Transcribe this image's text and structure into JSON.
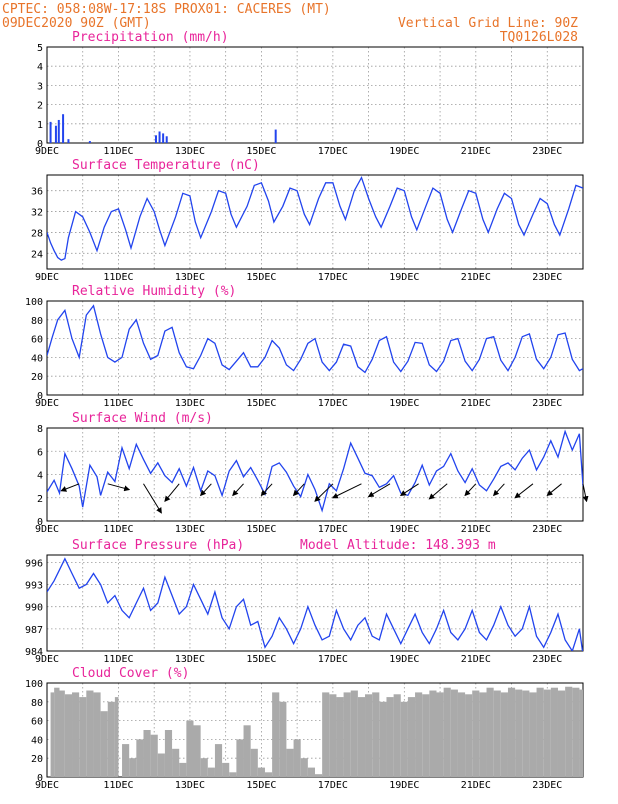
{
  "header": {
    "line1": "CPTEC:   058:08W-17:18S   PROX01: CACERES (MT)",
    "line2": "09DEC2020 90Z (GMT)",
    "grid_note": "Vertical Grid Line: 90Z",
    "code": "TQ0126L028"
  },
  "colors": {
    "header": "#e8742a",
    "title": "#e8249a",
    "line": "#2244ee",
    "cloud": "#aaaaaa",
    "arrow": "#000000",
    "grid": "#9a9a9a"
  },
  "x_tick_labels": [
    "9DEC",
    "11DEC",
    "13DEC",
    "15DEC",
    "17DEC",
    "19DEC",
    "21DEC",
    "23DEC"
  ],
  "x_range_days": [
    9,
    24
  ],
  "chart_data": [
    {
      "id": "precip",
      "type": "bar",
      "title": "Precipitation (mm/h)",
      "ylim": [
        0,
        5
      ],
      "yticks": [
        0,
        1,
        2,
        3,
        4,
        5
      ],
      "x": [
        9.1,
        9.25,
        9.33,
        9.45,
        9.6,
        10.2,
        12.05,
        12.15,
        12.25,
        12.35,
        15.4
      ],
      "values": [
        1.1,
        0.9,
        1.2,
        1.5,
        0.2,
        0.1,
        0.4,
        0.6,
        0.5,
        0.35,
        0.7
      ]
    },
    {
      "id": "temperature",
      "type": "line",
      "title": "Surface Temperature (nC)",
      "ylim": [
        21,
        39
      ],
      "yticks": [
        24,
        28,
        32,
        36
      ],
      "x": [
        9.0,
        9.1,
        9.2,
        9.3,
        9.4,
        9.5,
        9.6,
        9.8,
        10.0,
        10.2,
        10.4,
        10.6,
        10.8,
        11.0,
        11.2,
        11.35,
        11.6,
        11.8,
        12.0,
        12.15,
        12.3,
        12.6,
        12.8,
        13.0,
        13.15,
        13.3,
        13.6,
        13.8,
        14.0,
        14.15,
        14.3,
        14.6,
        14.8,
        15.0,
        15.2,
        15.35,
        15.6,
        15.8,
        16.0,
        16.2,
        16.35,
        16.6,
        16.8,
        17.0,
        17.2,
        17.35,
        17.6,
        17.8,
        18.0,
        18.2,
        18.35,
        18.6,
        18.8,
        19.0,
        19.2,
        19.35,
        19.6,
        19.8,
        20.0,
        20.2,
        20.35,
        20.6,
        20.8,
        21.0,
        21.2,
        21.35,
        21.6,
        21.8,
        22.0,
        22.2,
        22.35,
        22.6,
        22.8,
        23.0,
        23.2,
        23.35,
        23.6,
        23.8,
        24.0
      ],
      "values": [
        28,
        26,
        24.5,
        23.2,
        22.7,
        23,
        27,
        32,
        31,
        28,
        24.5,
        29,
        32,
        32.5,
        28.5,
        25,
        31,
        34.5,
        32,
        28.5,
        25.5,
        31,
        35.5,
        35,
        30,
        27,
        32,
        36,
        35.5,
        31.5,
        29,
        33,
        37,
        37.5,
        34,
        30,
        33,
        36.5,
        36,
        31.5,
        29.5,
        34.5,
        37.5,
        37.5,
        33,
        30.5,
        36,
        38.5,
        34.5,
        31,
        29,
        33,
        36.5,
        36,
        31,
        28.5,
        33,
        36.5,
        35.5,
        30.5,
        28,
        32.5,
        36,
        35.5,
        30.5,
        28,
        32.5,
        35.5,
        34.5,
        29.5,
        27.5,
        31.5,
        34.5,
        33.5,
        29.5,
        27.5,
        32.5,
        37,
        36.5
      ]
    },
    {
      "id": "humidity",
      "type": "line",
      "title": "Relative Humidity (%)",
      "ylim": [
        0,
        100
      ],
      "yticks": [
        0,
        20,
        40,
        60,
        80,
        100
      ],
      "x": [
        9.0,
        9.15,
        9.3,
        9.5,
        9.7,
        9.9,
        10.1,
        10.3,
        10.5,
        10.7,
        10.9,
        11.1,
        11.3,
        11.5,
        11.7,
        11.9,
        12.1,
        12.3,
        12.5,
        12.7,
        12.9,
        13.1,
        13.3,
        13.5,
        13.7,
        13.9,
        14.1,
        14.3,
        14.5,
        14.7,
        14.9,
        15.1,
        15.3,
        15.5,
        15.7,
        15.9,
        16.1,
        16.3,
        16.5,
        16.7,
        16.9,
        17.1,
        17.3,
        17.5,
        17.7,
        17.9,
        18.1,
        18.3,
        18.5,
        18.7,
        18.9,
        19.1,
        19.3,
        19.5,
        19.7,
        19.9,
        20.1,
        20.3,
        20.5,
        20.7,
        20.9,
        21.1,
        21.3,
        21.5,
        21.7,
        21.9,
        22.1,
        22.3,
        22.5,
        22.7,
        22.9,
        23.1,
        23.3,
        23.5,
        23.7,
        23.9,
        24.0
      ],
      "values": [
        42,
        62,
        80,
        90,
        60,
        40,
        85,
        95,
        65,
        40,
        35,
        40,
        70,
        80,
        55,
        38,
        42,
        68,
        72,
        45,
        30,
        28,
        42,
        60,
        55,
        32,
        27,
        36,
        45,
        30,
        30,
        40,
        58,
        50,
        32,
        26,
        38,
        55,
        60,
        35,
        26,
        35,
        54,
        52,
        30,
        24,
        38,
        58,
        62,
        35,
        25,
        36,
        56,
        55,
        32,
        25,
        36,
        58,
        60,
        36,
        26,
        38,
        60,
        62,
        37,
        26,
        40,
        62,
        65,
        38,
        28,
        40,
        64,
        66,
        38,
        26,
        28
      ]
    },
    {
      "id": "wind",
      "type": "line",
      "title": "Surface Wind (m/s)",
      "ylim": [
        0,
        8
      ],
      "yticks": [
        0,
        2,
        4,
        6,
        8
      ],
      "x": [
        9.0,
        9.2,
        9.35,
        9.5,
        9.7,
        9.9,
        10.0,
        10.2,
        10.4,
        10.5,
        10.7,
        10.9,
        11.1,
        11.3,
        11.5,
        11.7,
        11.9,
        12.1,
        12.3,
        12.5,
        12.7,
        12.9,
        13.1,
        13.3,
        13.5,
        13.7,
        13.9,
        14.1,
        14.3,
        14.5,
        14.7,
        14.9,
        15.1,
        15.3,
        15.5,
        15.7,
        15.9,
        16.1,
        16.3,
        16.5,
        16.7,
        16.9,
        17.1,
        17.3,
        17.5,
        17.7,
        17.9,
        18.1,
        18.3,
        18.5,
        18.7,
        18.9,
        19.1,
        19.3,
        19.5,
        19.7,
        19.9,
        20.1,
        20.3,
        20.5,
        20.7,
        20.9,
        21.1,
        21.3,
        21.5,
        21.7,
        21.9,
        22.1,
        22.3,
        22.5,
        22.7,
        22.9,
        23.1,
        23.3,
        23.5,
        23.7,
        23.9,
        24.0
      ],
      "values": [
        2.5,
        3.5,
        2.4,
        5.8,
        4.5,
        3.0,
        1.2,
        4.8,
        3.8,
        2.2,
        4.2,
        3.4,
        6.3,
        4.5,
        6.6,
        5.3,
        4.1,
        5.0,
        3.9,
        3.3,
        4.5,
        3.0,
        4.6,
        2.6,
        4.3,
        3.9,
        2.2,
        4.3,
        5.2,
        3.8,
        4.6,
        3.5,
        2.3,
        4.7,
        5.0,
        4.2,
        3.0,
        2.1,
        4.0,
        2.7,
        0.9,
        3.2,
        2.6,
        4.5,
        6.7,
        5.4,
        4.1,
        3.9,
        2.9,
        3.2,
        3.9,
        2.4,
        2.2,
        3.3,
        4.8,
        3.1,
        4.3,
        4.7,
        5.8,
        4.3,
        3.3,
        4.5,
        3.1,
        2.6,
        3.6,
        4.7,
        5.0,
        4.4,
        5.4,
        6.1,
        4.4,
        5.5,
        6.9,
        5.5,
        7.7,
        6.1,
        7.5,
        3.0
      ]
    },
    {
      "id": "wind-vectors",
      "type": "scatter",
      "title": "",
      "x": [
        9.9,
        10.7,
        11.7,
        12.7,
        13.6,
        14.5,
        15.3,
        16.2,
        17.0,
        17.8,
        18.6,
        19.4,
        20.2,
        21.0,
        21.8,
        22.6,
        23.4,
        24.0
      ],
      "dx": [
        -0.5,
        0.6,
        0.5,
        -0.4,
        -0.3,
        -0.3,
        -0.3,
        -0.3,
        -0.5,
        -0.8,
        -0.6,
        -0.5,
        -0.5,
        -0.3,
        -0.3,
        -0.5,
        -0.4,
        0.1
      ],
      "dy": [
        -0.6,
        -0.5,
        -2.5,
        -1.5,
        -1.0,
        -1.0,
        -1.0,
        -1.0,
        -1.5,
        -1.2,
        -1.1,
        -1.0,
        -1.3,
        -1.0,
        -1.0,
        -1.2,
        -1.0,
        -1.5
      ]
    },
    {
      "id": "pressure",
      "type": "line",
      "title": "Surface Pressure (hPa)",
      "model_altitude": "Model Altitude: 148.393 m",
      "ylim": [
        984,
        997
      ],
      "yticks": [
        984,
        987,
        990,
        993,
        996
      ],
      "x": [
        9.0,
        9.2,
        9.35,
        9.5,
        9.7,
        9.9,
        10.1,
        10.3,
        10.5,
        10.7,
        10.9,
        11.1,
        11.3,
        11.5,
        11.7,
        11.9,
        12.1,
        12.3,
        12.5,
        12.7,
        12.9,
        13.1,
        13.3,
        13.5,
        13.7,
        13.9,
        14.1,
        14.3,
        14.5,
        14.7,
        14.9,
        15.1,
        15.3,
        15.5,
        15.7,
        15.9,
        16.1,
        16.3,
        16.5,
        16.7,
        16.9,
        17.1,
        17.3,
        17.5,
        17.7,
        17.9,
        18.1,
        18.3,
        18.5,
        18.7,
        18.9,
        19.1,
        19.3,
        19.5,
        19.7,
        19.9,
        20.1,
        20.3,
        20.5,
        20.7,
        20.9,
        21.1,
        21.3,
        21.5,
        21.7,
        21.9,
        22.1,
        22.3,
        22.5,
        22.7,
        22.9,
        23.1,
        23.3,
        23.5,
        23.7,
        23.9,
        24.0
      ],
      "values": [
        992,
        993.5,
        995,
        996.5,
        994.5,
        992.5,
        993,
        994.5,
        993,
        990.5,
        991.5,
        989.5,
        988.5,
        990.5,
        992.5,
        989.5,
        990.5,
        994,
        991.5,
        989,
        990,
        993,
        991,
        989,
        992,
        988.5,
        987,
        990,
        991,
        987.5,
        988,
        984.5,
        986,
        988.5,
        987,
        985,
        987,
        990,
        987.5,
        985.5,
        986,
        989.5,
        987,
        985.5,
        987.5,
        988.5,
        986,
        985.5,
        989,
        987,
        985,
        987,
        989,
        986.5,
        985,
        987,
        989.5,
        986.5,
        985.5,
        987,
        989.5,
        986.5,
        985.5,
        987.5,
        990,
        987.5,
        986,
        987,
        990,
        986,
        984.5,
        986.5,
        989,
        985.5,
        984,
        987,
        983.5
      ]
    },
    {
      "id": "cloud",
      "type": "area",
      "title": "Cloud Cover (%)",
      "ylim": [
        0,
        100
      ],
      "yticks": [
        0,
        20,
        40,
        60,
        80,
        100
      ],
      "x": [
        9.0,
        9.1,
        9.2,
        9.35,
        9.5,
        9.7,
        9.9,
        10.1,
        10.3,
        10.5,
        10.7,
        10.9,
        11.0,
        11.1,
        11.3,
        11.5,
        11.7,
        11.9,
        12.1,
        12.3,
        12.5,
        12.7,
        12.9,
        13.1,
        13.3,
        13.5,
        13.7,
        13.9,
        14.1,
        14.3,
        14.5,
        14.7,
        14.9,
        15.1,
        15.3,
        15.5,
        15.7,
        15.9,
        16.1,
        16.3,
        16.5,
        16.7,
        16.9,
        17.1,
        17.3,
        17.5,
        17.7,
        17.9,
        18.1,
        18.3,
        18.5,
        18.7,
        18.9,
        19.1,
        19.3,
        19.5,
        19.7,
        19.9,
        20.1,
        20.3,
        20.5,
        20.7,
        20.9,
        21.1,
        21.3,
        21.5,
        21.7,
        21.9,
        22.1,
        22.3,
        22.5,
        22.7,
        22.9,
        23.1,
        23.3,
        23.5,
        23.7,
        23.9,
        24.0
      ],
      "values": [
        0,
        90,
        95,
        92,
        88,
        90,
        85,
        92,
        90,
        70,
        80,
        85,
        0,
        35,
        20,
        40,
        50,
        45,
        25,
        50,
        30,
        15,
        60,
        55,
        20,
        10,
        35,
        15,
        5,
        40,
        55,
        30,
        10,
        5,
        90,
        80,
        30,
        40,
        20,
        10,
        3,
        90,
        88,
        85,
        90,
        92,
        85,
        88,
        90,
        80,
        85,
        88,
        80,
        85,
        90,
        88,
        92,
        90,
        95,
        93,
        90,
        88,
        92,
        90,
        95,
        92,
        90,
        95,
        93,
        92,
        90,
        95,
        93,
        95,
        92,
        96,
        95,
        93,
        90
      ]
    }
  ]
}
